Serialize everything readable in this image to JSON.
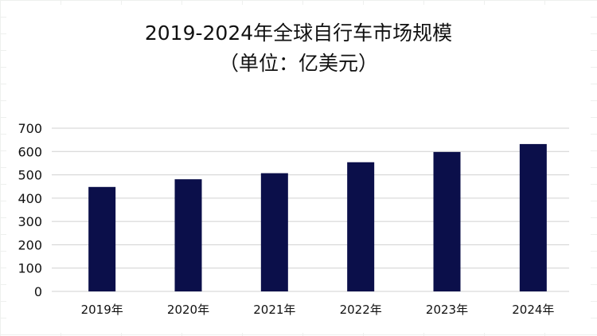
{
  "chart_data": {
    "type": "bar",
    "title": "2019-2024年全球自行车市场规模",
    "subtitle": "（单位：亿美元）",
    "categories": [
      "2019年",
      "2020年",
      "2021年",
      "2022年",
      "2023年",
      "2024年"
    ],
    "values": [
      448,
      481,
      507,
      554,
      598,
      632
    ],
    "ylim": [
      0,
      700
    ],
    "yticks": [
      "0",
      "100",
      "200",
      "300",
      "400",
      "500",
      "600",
      "700"
    ],
    "xlabel": "",
    "ylabel": "",
    "grid": true,
    "colors": {
      "bar": "#0b0f4a",
      "grid": "#d0d0d0"
    }
  }
}
